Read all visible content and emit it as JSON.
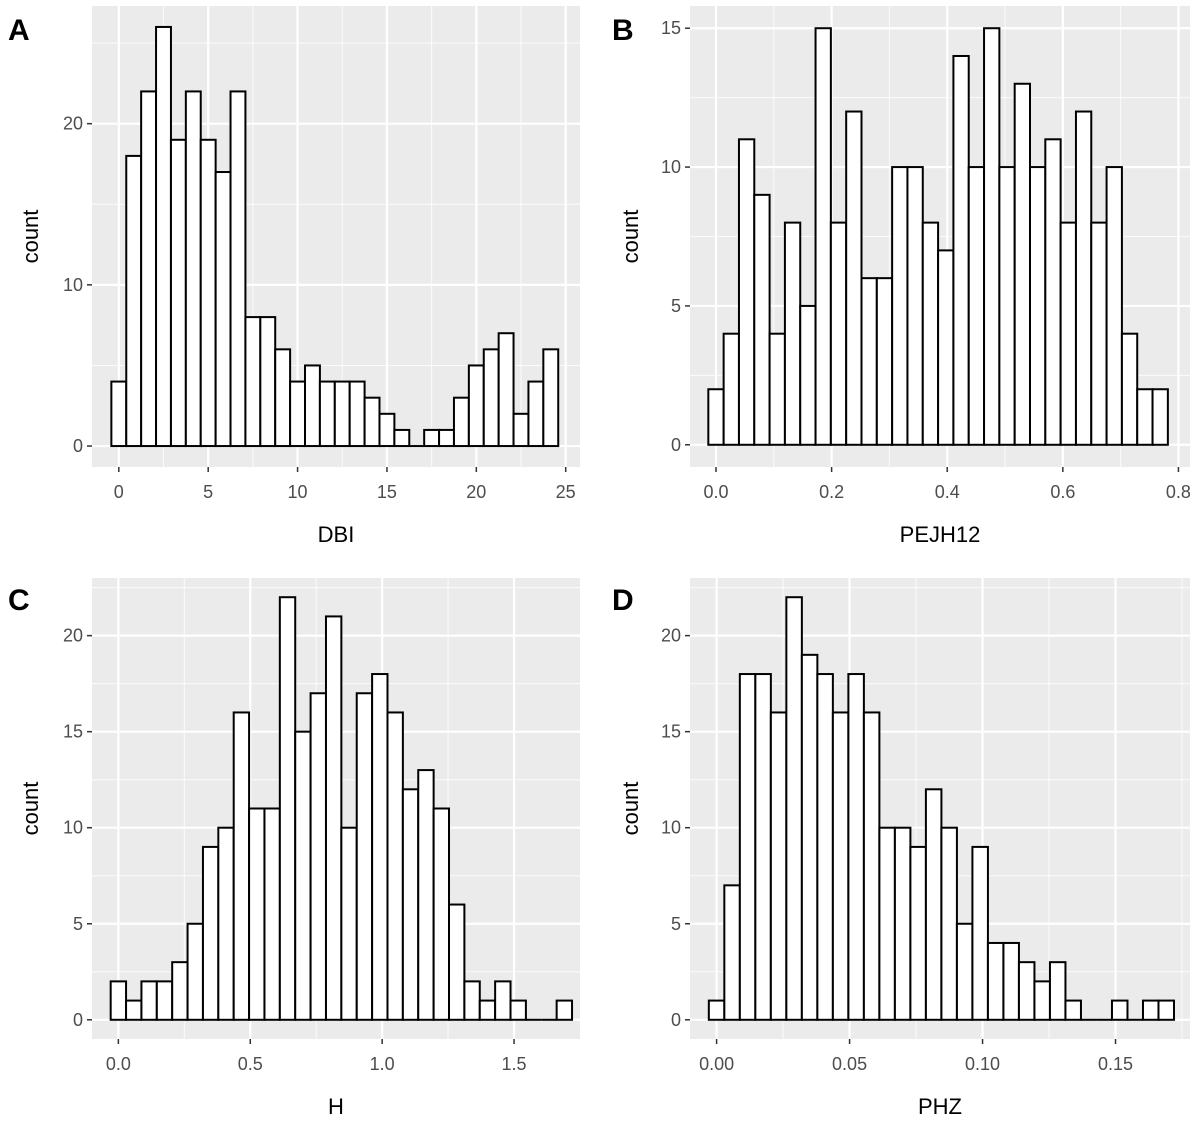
{
  "colors": {
    "panel_bg": "#ebebeb",
    "grid": "#ffffff",
    "bar_fill": "#ffffff",
    "bar_stroke": "#000000",
    "tick_text": "#4d4d4d"
  },
  "chart_data": [
    {
      "type": "bar",
      "panel": "A",
      "title": "",
      "xlabel": "DBI",
      "ylabel": "count",
      "grid": true,
      "xlim": [
        -1.5,
        25.8
      ],
      "ylim": [
        -1.3,
        27.3
      ],
      "x_ticks": [
        0,
        5,
        10,
        15,
        20,
        25
      ],
      "x_tick_labels": [
        "0",
        "5",
        "10",
        "15",
        "20",
        "25"
      ],
      "y_ticks": [
        0,
        10,
        20
      ],
      "y_tick_labels": [
        "0",
        "10",
        "20"
      ],
      "bin_width": 0.8333,
      "bin_start": -0.4167,
      "values": [
        4,
        18,
        22,
        26,
        19,
        22,
        19,
        17,
        22,
        8,
        8,
        6,
        4,
        5,
        4,
        4,
        4,
        3,
        2,
        1,
        0,
        1,
        1,
        3,
        5,
        6,
        7,
        2,
        4,
        6
      ]
    },
    {
      "type": "bar",
      "panel": "B",
      "title": "",
      "xlabel": "PEJH12",
      "ylabel": "count",
      "grid": true,
      "xlim": [
        -0.045,
        0.82
      ],
      "ylim": [
        -0.8,
        15.8
      ],
      "x_ticks": [
        0.0,
        0.2,
        0.4,
        0.6,
        0.8
      ],
      "x_tick_labels": [
        "0.0",
        "0.2",
        "0.4",
        "0.6",
        "0.8"
      ],
      "y_ticks": [
        0,
        5,
        10,
        15
      ],
      "y_tick_labels": [
        "0",
        "5",
        "10",
        "15"
      ],
      "bin_width": 0.0265,
      "bin_start": -0.0133,
      "values": [
        2,
        4,
        11,
        9,
        4,
        8,
        5,
        15,
        8,
        12,
        6,
        6,
        10,
        10,
        8,
        7,
        14,
        10,
        15,
        10,
        13,
        10,
        11,
        8,
        12,
        8,
        10,
        4,
        2,
        2
      ]
    },
    {
      "type": "bar",
      "panel": "C",
      "title": "",
      "xlabel": "H",
      "ylabel": "count",
      "grid": true,
      "xlim": [
        -0.1,
        1.75
      ],
      "ylim": [
        -1.0,
        23.0
      ],
      "x_ticks": [
        0.0,
        0.5,
        1.0,
        1.5
      ],
      "x_tick_labels": [
        "0.0",
        "0.5",
        "1.0",
        "1.5"
      ],
      "y_ticks": [
        0,
        5,
        10,
        15,
        20
      ],
      "y_tick_labels": [
        "0",
        "5",
        "10",
        "15",
        "20"
      ],
      "bin_width": 0.0583,
      "bin_start": -0.0292,
      "values": [
        2,
        1,
        2,
        2,
        3,
        5,
        9,
        10,
        16,
        11,
        11,
        22,
        15,
        17,
        21,
        10,
        17,
        18,
        16,
        12,
        13,
        11,
        6,
        2,
        1,
        2,
        1,
        0,
        0,
        1
      ]
    },
    {
      "type": "bar",
      "panel": "D",
      "title": "",
      "xlabel": "PHZ",
      "ylabel": "count",
      "grid": true,
      "xlim": [
        -0.01,
        0.178
      ],
      "ylim": [
        -1.0,
        23.0
      ],
      "x_ticks": [
        0.0,
        0.05,
        0.1,
        0.15
      ],
      "x_tick_labels": [
        "0.00",
        "0.05",
        "0.10",
        "0.15"
      ],
      "y_ticks": [
        0,
        5,
        10,
        15,
        20
      ],
      "y_tick_labels": [
        "0",
        "5",
        "10",
        "15",
        "20"
      ],
      "bin_width": 0.00583,
      "bin_start": -0.00292,
      "values": [
        1,
        7,
        18,
        18,
        16,
        22,
        19,
        18,
        16,
        18,
        16,
        10,
        10,
        9,
        12,
        10,
        5,
        9,
        4,
        4,
        3,
        2,
        3,
        1,
        0,
        0,
        1,
        0,
        1,
        1
      ]
    }
  ]
}
